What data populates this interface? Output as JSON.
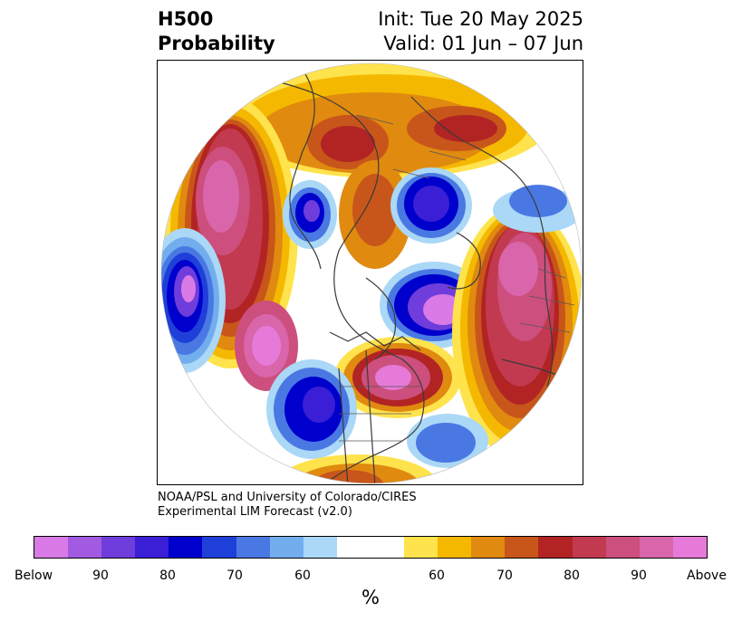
{
  "header": {
    "variable": "H500",
    "product": "Probability",
    "init": "Init: Tue 20 May 2025",
    "valid": "Valid: 01 Jun – 07 Jun"
  },
  "credit": {
    "line1": "NOAA/PSL and University of Colorado/CIRES",
    "line2": "Experimental LIM Forecast (v2.0)"
  },
  "colorbar": {
    "colors": [
      "#d97ae6",
      "#a25ae0",
      "#6e3ddb",
      "#3a1fd6",
      "#0000cc",
      "#1f3fd9",
      "#4a78e3",
      "#72aeee",
      "#aad8f6",
      "#ffffff",
      "#ffffff",
      "#ffe34d",
      "#f5b800",
      "#e08a10",
      "#c8561a",
      "#b22424",
      "#c23a50",
      "#cc4f7d",
      "#d965aa",
      "#e67ad9"
    ],
    "tick_labels": [
      "Below",
      "90",
      "80",
      "70",
      "60",
      "60",
      "70",
      "80",
      "90",
      "Above"
    ],
    "unit": "%"
  },
  "map": {
    "projection": "north-polar-stereographic",
    "features": [
      "H500 anomaly probability shading",
      "coastlines",
      "country and state borders"
    ]
  }
}
